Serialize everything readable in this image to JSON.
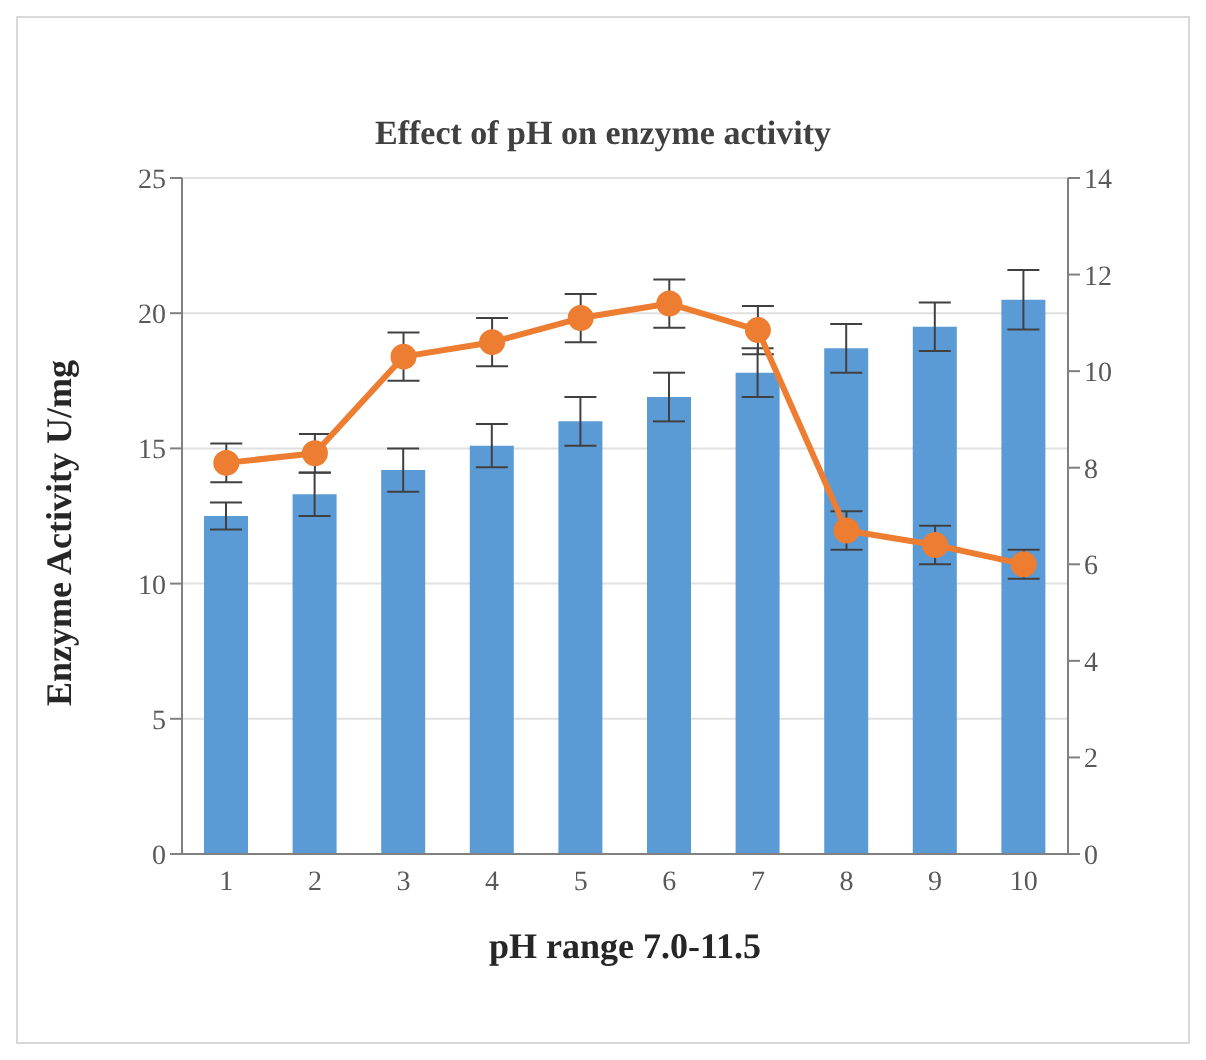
{
  "chart_data": {
    "type": "bar",
    "title": "Effect of pH on enzyme activity",
    "xlabel": "pH range 7.0-11.5",
    "ylabel": "Enzyme Activity U/mg",
    "categories": [
      "1",
      "2",
      "3",
      "4",
      "5",
      "6",
      "7",
      "8",
      "9",
      "10"
    ],
    "series": [
      {
        "color": "#5b9bd5",
        "values": [
          12.5,
          13.3,
          14.2,
          15.1,
          16.0,
          16.9,
          17.8,
          18.7,
          19.5,
          20.5
        ],
        "errors": [
          0.5,
          0.8,
          0.8,
          0.8,
          0.9,
          0.9,
          0.9,
          0.9,
          0.9,
          1.1
        ]
      },
      {
        "type": "line",
        "axis": "y2",
        "color": "#ed7d31",
        "marker": "circle",
        "values": [
          8.1,
          8.3,
          10.3,
          10.6,
          11.1,
          11.4,
          10.85,
          6.7,
          6.4,
          6.0
        ],
        "errors": [
          0.4,
          0.4,
          0.5,
          0.5,
          0.5,
          0.5,
          0.5,
          0.4,
          0.4,
          0.3
        ]
      }
    ],
    "ylim": [
      0,
      25
    ],
    "yticks": [
      0,
      5,
      10,
      15,
      20,
      25
    ],
    "y2lim": [
      0,
      14
    ],
    "y2ticks": [
      0,
      2,
      4,
      6,
      8,
      10,
      12,
      14
    ],
    "grid": "y",
    "legend": false
  }
}
